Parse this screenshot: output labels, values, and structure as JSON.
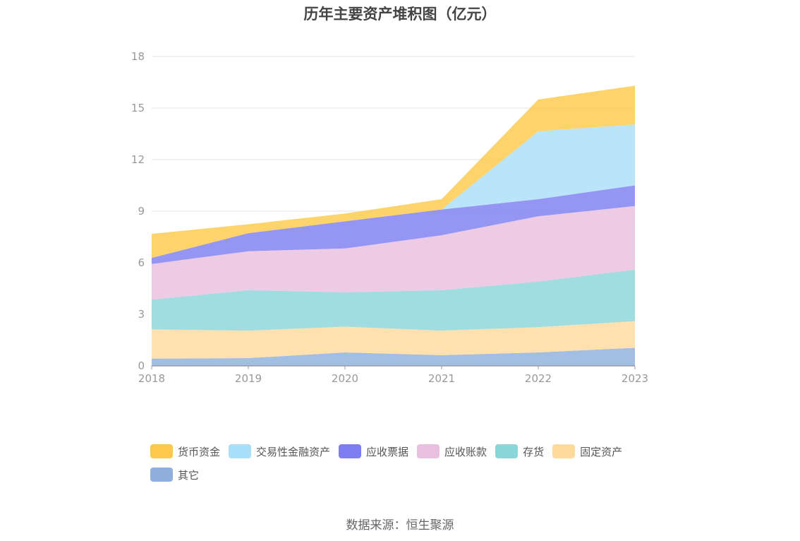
{
  "chart_data": {
    "type": "area",
    "stacked": true,
    "title": "历年主要资产堆积图（亿元）",
    "x": [
      "2018",
      "2019",
      "2020",
      "2021",
      "2022",
      "2023"
    ],
    "ylim": [
      0,
      18
    ],
    "yticks": [
      0,
      3,
      6,
      9,
      12,
      15,
      18
    ],
    "grid": true,
    "legend_position": "bottom",
    "series": [
      {
        "name": "其它",
        "color": "#8fb0dd",
        "values": [
          0.42,
          0.45,
          0.78,
          0.62,
          0.78,
          1.05
        ]
      },
      {
        "name": "固定资产",
        "color": "#fedb9c",
        "values": [
          1.7,
          1.6,
          1.5,
          1.43,
          1.47,
          1.55
        ]
      },
      {
        "name": "存货",
        "color": "#8ad6d9",
        "values": [
          1.73,
          2.35,
          2.0,
          2.35,
          2.65,
          3.0
        ]
      },
      {
        "name": "应收账款",
        "color": "#e9bfdf",
        "values": [
          2.08,
          2.27,
          2.55,
          3.2,
          3.8,
          3.7
        ]
      },
      {
        "name": "应收票据",
        "color": "#7e7ef2",
        "values": [
          0.35,
          1.05,
          1.58,
          1.5,
          1.0,
          1.2
        ]
      },
      {
        "name": "交易性金融资产",
        "color": "#a9def8",
        "values": [
          0.0,
          0.0,
          0.0,
          0.0,
          3.95,
          3.55
        ]
      },
      {
        "name": "货币资金",
        "color": "#fdc94a",
        "values": [
          1.4,
          0.52,
          0.45,
          0.6,
          1.85,
          2.25
        ]
      }
    ]
  },
  "legend_items": [
    {
      "label": "货币资金",
      "color": "#fdc94a"
    },
    {
      "label": "交易性金融资产",
      "color": "#a9def8"
    },
    {
      "label": "应收票据",
      "color": "#7e7ef2"
    },
    {
      "label": "应收账款",
      "color": "#e9bfdf"
    },
    {
      "label": "存货",
      "color": "#8ad6d9"
    },
    {
      "label": "固定资产",
      "color": "#fedb9c"
    },
    {
      "label": "其它",
      "color": "#8fb0dd"
    }
  ],
  "source": "数据来源：恒生聚源"
}
